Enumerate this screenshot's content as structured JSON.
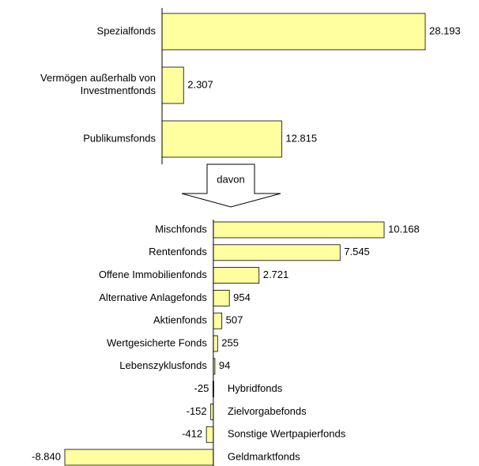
{
  "chart_data": [
    {
      "type": "bar",
      "orientation": "horizontal",
      "color": "#ffffa0",
      "categories": [
        "Spezialfonds",
        "Vermögen außerhalb von\nInvestmentfonds",
        "Publikumsfonds"
      ],
      "values": [
        28193,
        2307,
        12815
      ],
      "value_labels": [
        "28.193",
        "2.307",
        "12.815"
      ]
    },
    {
      "type": "bar",
      "orientation": "horizontal",
      "color": "#ffffa0",
      "annotation": "davon",
      "categories": [
        "Mischfonds",
        "Rentenfonds",
        "Offene Immobilienfonds",
        "Alternative Anlagefonds",
        "Aktienfonds",
        "Wertgesicherte Fonds",
        "Lebenszyklusfonds",
        "Hybridfonds",
        "Zielvorgabefonds",
        "Sonstige Wertpapierfonds",
        "Geldmarktfonds"
      ],
      "values": [
        10168,
        7545,
        2721,
        954,
        507,
        255,
        94,
        -25,
        -152,
        -412,
        -8840
      ],
      "value_labels": [
        "10.168",
        "7.545",
        "2.721",
        "954",
        "507",
        "255",
        "94",
        "-25",
        "-152",
        "-412",
        "-8.840"
      ]
    }
  ]
}
